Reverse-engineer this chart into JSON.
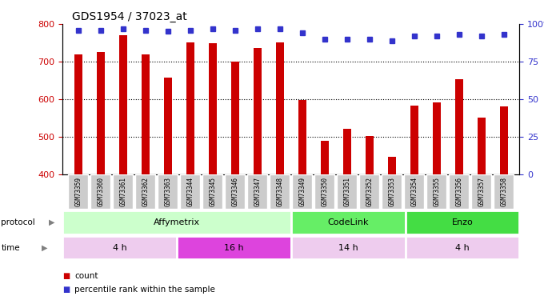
{
  "title": "GDS1954 / 37023_at",
  "samples": [
    "GSM73359",
    "GSM73360",
    "GSM73361",
    "GSM73362",
    "GSM73363",
    "GSM73344",
    "GSM73345",
    "GSM73346",
    "GSM73347",
    "GSM73348",
    "GSM73349",
    "GSM73350",
    "GSM73351",
    "GSM73352",
    "GSM73353",
    "GSM73354",
    "GSM73355",
    "GSM73356",
    "GSM73357",
    "GSM73358"
  ],
  "counts": [
    720,
    725,
    770,
    720,
    657,
    750,
    748,
    700,
    735,
    750,
    597,
    488,
    520,
    502,
    445,
    583,
    590,
    653,
    550,
    580
  ],
  "percentiles": [
    96,
    96,
    97,
    96,
    95,
    96,
    97,
    96,
    97,
    97,
    94,
    90,
    90,
    90,
    89,
    92,
    92,
    93,
    92,
    93
  ],
  "ylim_left": [
    400,
    800
  ],
  "ylim_right": [
    0,
    100
  ],
  "yticks_left": [
    400,
    500,
    600,
    700,
    800
  ],
  "yticks_right": [
    0,
    25,
    50,
    75,
    100
  ],
  "bar_color": "#cc0000",
  "dot_color": "#3333cc",
  "protocol_groups": [
    {
      "label": "Affymetrix",
      "start": 0,
      "end": 10,
      "color": "#ccffcc"
    },
    {
      "label": "CodeLink",
      "start": 10,
      "end": 15,
      "color": "#66ee66"
    },
    {
      "label": "Enzo",
      "start": 15,
      "end": 20,
      "color": "#44dd44"
    }
  ],
  "time_groups": [
    {
      "label": "4 h",
      "start": 0,
      "end": 5,
      "color": "#eeccee"
    },
    {
      "label": "16 h",
      "start": 5,
      "end": 10,
      "color": "#dd44dd"
    },
    {
      "label": "14 h",
      "start": 10,
      "end": 15,
      "color": "#eeccee"
    },
    {
      "label": "4 h",
      "start": 15,
      "end": 20,
      "color": "#eeccee"
    }
  ],
  "legend_count_label": "count",
  "legend_pct_label": "percentile rank within the sample",
  "tick_bg_color": "#cccccc",
  "plot_bg_color": "#ffffff",
  "figure_bg": "#ffffff"
}
